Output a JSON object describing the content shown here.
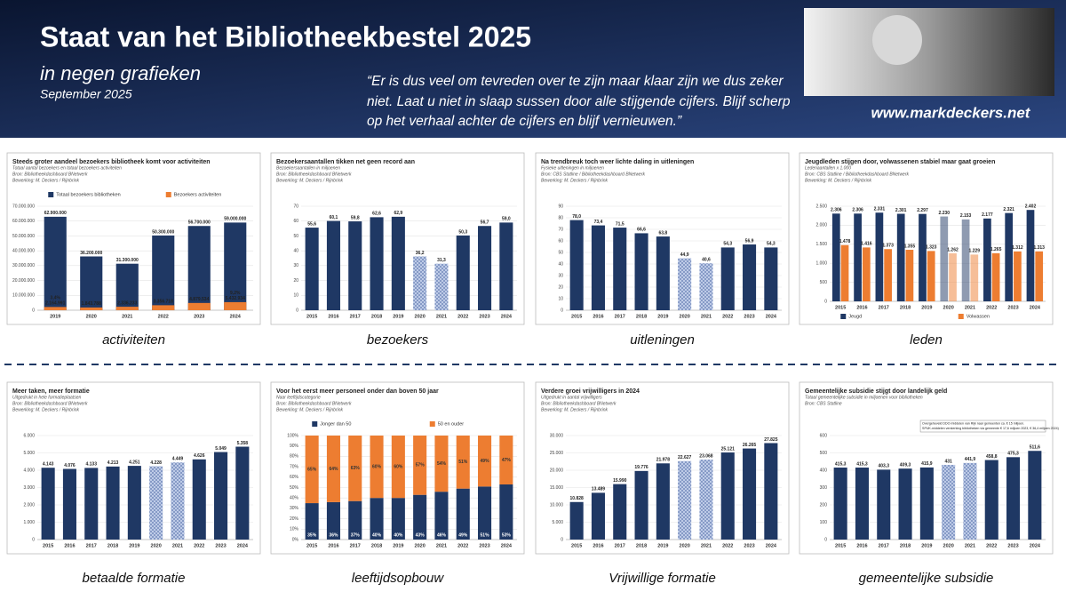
{
  "header": {
    "title": "Staat van het Bibliotheekbestel 2025",
    "subtitle": "in negen grafieken",
    "date": "September 2025",
    "quote_lines": [
      "“Er is dus veel om tevreden over te zijn maar klaar zijn we dus zeker",
      "niet. Laat u niet in slaap sussen door alle stijgende cijfers. Blijf scherp",
      "op het verhaal achter de cijfers en blijf vernieuwen.”"
    ],
    "website": "www.markdeckers.net"
  },
  "chart_data": [
    {
      "type": "overlap-bar",
      "title": "Steeds groter aandeel bezoekers bibliotheek komt voor activiteiten",
      "subtitle": "Totaal aantal bezoekers en totaal bezoekers activiteiten",
      "source": "Bron: Bibliotheekdashboard BNetwerk",
      "processing": "Bewerking: M. Deckers / Rijnbrink",
      "caption": "activiteiten",
      "categories": [
        "2019",
        "2020",
        "2021",
        "2022",
        "2023",
        "2024"
      ],
      "series": [
        {
          "name": "Totaal bezoekers bibliotheken",
          "color": "#1f3864",
          "values": [
            62900000,
            36200000,
            31300000,
            50300000,
            56700000,
            59000000
          ],
          "value_labels": [
            "62.900.000",
            "36.200.000",
            "31.300.000",
            "50.300.000",
            "56.700.000",
            "59.000.000"
          ]
        },
        {
          "name": "Bezoekers activiteiten",
          "color": "#ed7d31",
          "values": [
            2164991,
            1843788,
            2336233,
            3356718,
            4879534,
            5432934
          ],
          "value_labels": [
            "2.164.991",
            "1.843.788",
            "2.336.233",
            "3.356.718",
            "4.879.534",
            "5.432.934"
          ],
          "share_labels": [
            "3,4%",
            null,
            null,
            null,
            null,
            "9,2%"
          ]
        }
      ],
      "legend": "top",
      "ylim": [
        0,
        70000000
      ],
      "yticks": [
        0,
        {
          "value": 10000000,
          "label": "10.000.000"
        },
        {
          "value": 20000000,
          "label": "20.000.000"
        },
        {
          "value": 30000000,
          "label": "30.000.000"
        },
        {
          "value": 40000000,
          "label": "40.000.000"
        },
        {
          "value": 50000000,
          "label": "50.000.000"
        },
        {
          "value": 60000000,
          "label": "60.000.000"
        },
        {
          "value": 70000000,
          "label": "70.000.000"
        }
      ]
    },
    {
      "type": "bar",
      "title": "Bezoekersaantallen tikken net geen record aan",
      "subtitle": "Bezoekersaantallen in miljoenen",
      "source": "Bron: Bibliotheekdashboard BNetwerk",
      "processing": "Bewerking: M. Deckers / Rijnbrink",
      "caption": "bezoekers",
      "categories": [
        "2015",
        "2016",
        "2017",
        "2018",
        "2019",
        "2020",
        "2021",
        "2022",
        "2023",
        "2024"
      ],
      "values": [
        55.6,
        60.1,
        59.8,
        62.6,
        62.9,
        36.2,
        31.3,
        50.3,
        56.7,
        59.0
      ],
      "value_labels": [
        "55,6",
        "60,1",
        "59,8",
        "62,6",
        "62,9",
        "36,2",
        "31,3",
        "50,3",
        "56,7",
        "59,0"
      ],
      "color": "#1f3864",
      "hatched": [
        false,
        false,
        false,
        false,
        false,
        true,
        true,
        false,
        false,
        false
      ],
      "ylim": [
        0,
        70
      ],
      "yticks": [
        0,
        10,
        20,
        30,
        40,
        50,
        60,
        70
      ]
    },
    {
      "type": "bar",
      "title": "Na trendbreuk toch weer lichte daling in uitleningen",
      "subtitle": "Fysieke uitleningen in miljoenen",
      "source": "Bron: CBS Statline / Bibliotheekdashboard BNetwerk",
      "processing": "Bewerking: M. Deckers / Rijnbrink",
      "caption": "uitleningen",
      "categories": [
        "2015",
        "2016",
        "2017",
        "2018",
        "2019",
        "2020",
        "2021",
        "2022",
        "2023",
        "2024"
      ],
      "values": [
        78.0,
        73.4,
        71.5,
        66.6,
        63.8,
        44.9,
        40.6,
        54.3,
        56.9,
        54.3
      ],
      "value_labels": [
        "78,0",
        "73,4",
        "71,5",
        "66,6",
        "63,8",
        "44,9",
        "40,6",
        "54,3",
        "56,9",
        "54,3"
      ],
      "color": "#1f3864",
      "hatched": [
        false,
        false,
        false,
        false,
        false,
        true,
        true,
        false,
        false,
        false
      ],
      "ylim": [
        0,
        90
      ],
      "yticks": [
        0,
        10,
        20,
        30,
        40,
        50,
        60,
        70,
        80,
        90
      ]
    },
    {
      "type": "grouped-bar",
      "title": "Jeugdleden stijgen door, volwassenen stabiel maar gaat groeien",
      "subtitle": "Ledenaantallen x 1.000",
      "source": "Bron: CBS Statline / Bibliotheekdashboard BNetwerk",
      "processing": "Bewerking: M. Deckers / Rijnbrink",
      "caption": "leden",
      "categories": [
        "2015",
        "2016",
        "2017",
        "2018",
        "2019",
        "2020",
        "2021",
        "2022",
        "2023",
        "2024"
      ],
      "series": [
        {
          "name": "Jeugd",
          "color": "#1f3864",
          "values": [
            2306,
            2306,
            2331,
            2301,
            2297,
            2230,
            2153,
            2177,
            2321,
            2402
          ],
          "value_labels": [
            "2.306",
            "2.306",
            "2.331",
            "2.301",
            "2.297",
            "2.230",
            "2.153",
            "2.177",
            "2.321",
            "2.402"
          ]
        },
        {
          "name": "Volwassen",
          "color": "#ed7d31",
          "values": [
            1478,
            1416,
            1373,
            1355,
            1323,
            1262,
            1229,
            1265,
            1312,
            1313
          ],
          "value_labels": [
            "1.478",
            "1.416",
            "1.373",
            "1.355",
            "1.323",
            "1.262",
            "1.229",
            "1.265",
            "1.312",
            "1.313"
          ]
        }
      ],
      "hatched": [
        false,
        false,
        false,
        false,
        false,
        true,
        true,
        false,
        false,
        false
      ],
      "legend": "bottom",
      "ylim": [
        0,
        2500
      ],
      "yticks": [
        0,
        500,
        {
          "value": 1000,
          "label": "1.000"
        },
        {
          "value": 1500,
          "label": "1.500"
        },
        {
          "value": 2000,
          "label": "2.000"
        },
        {
          "value": 2500,
          "label": "2.500"
        }
      ]
    },
    {
      "type": "bar",
      "title": "Meer taken, meer formatie",
      "subtitle": "Uitgedrukt in hele formatieplaatsen",
      "source": "Bron: Bibliotheekdashboard BNetwerk",
      "processing": "Bewerking: M. Deckers / Rijnbrink",
      "caption": "betaalde formatie",
      "categories": [
        "2015",
        "2016",
        "2017",
        "2018",
        "2019",
        "2020",
        "2021",
        "2022",
        "2023",
        "2024"
      ],
      "values": [
        4143,
        4076,
        4133,
        4213,
        4251,
        4228,
        4449,
        4626,
        5049,
        5358
      ],
      "value_labels": [
        "4.143",
        "4.076",
        "4.133",
        "4.213",
        "4.251",
        "4.228",
        "4.449",
        "4.626",
        "5.049",
        "5.358"
      ],
      "color": "#1f3864",
      "hatched": [
        false,
        false,
        false,
        false,
        false,
        true,
        true,
        false,
        false,
        false
      ],
      "ylim": [
        0,
        6000
      ],
      "yticks": [
        0,
        {
          "value": 1000,
          "label": "1.000"
        },
        {
          "value": 2000,
          "label": "2.000"
        },
        {
          "value": 3000,
          "label": "3.000"
        },
        {
          "value": 4000,
          "label": "4.000"
        },
        {
          "value": 5000,
          "label": "5.000"
        },
        {
          "value": 6000,
          "label": "6.000"
        }
      ]
    },
    {
      "type": "stacked-bar",
      "title": "Voor het eerst meer personeel onder dan boven 50 jaar",
      "subtitle": "Naar leeftijdscategorie",
      "source": "Bron: Bibliotheekdashboard BNetwerk",
      "processing": "Bewerking: M. Deckers / Rijnbrink",
      "caption": "leeftijdsopbouw",
      "categories": [
        "2015",
        "2016",
        "2017",
        "2018",
        "2019",
        "2020",
        "2021",
        "2022",
        "2023",
        "2024"
      ],
      "series": [
        {
          "name": "Jonger dan 50",
          "color": "#1f3864",
          "values": [
            35,
            36,
            37,
            40,
            40,
            43,
            46,
            49,
            51,
            53
          ],
          "value_labels": [
            "35%",
            "36%",
            "37%",
            "40%",
            "40%",
            "43%",
            "46%",
            "49%",
            "51%",
            "53%"
          ]
        },
        {
          "name": "50 en ouder",
          "color": "#ed7d31",
          "values": [
            65,
            64,
            63,
            60,
            60,
            57,
            54,
            51,
            49,
            47
          ],
          "value_labels": [
            "65%",
            "64%",
            "63%",
            "60%",
            "60%",
            "57%",
            "54%",
            "51%",
            "49%",
            "47%"
          ]
        }
      ],
      "legend": "top",
      "ylim": [
        0,
        100
      ],
      "yticks": [
        {
          "value": 0,
          "label": "0%"
        },
        {
          "value": 10,
          "label": "10%"
        },
        {
          "value": 20,
          "label": "20%"
        },
        {
          "value": 30,
          "label": "30%"
        },
        {
          "value": 40,
          "label": "40%"
        },
        {
          "value": 50,
          "label": "50%"
        },
        {
          "value": 60,
          "label": "60%"
        },
        {
          "value": 70,
          "label": "70%"
        },
        {
          "value": 80,
          "label": "80%"
        },
        {
          "value": 90,
          "label": "90%"
        },
        {
          "value": 100,
          "label": "100%"
        }
      ]
    },
    {
      "type": "bar",
      "title": "Verdere groei vrijwilligers in 2024",
      "subtitle": "Uitgedrukt in aantal vrijwilligers",
      "source": "Bron: Bibliotheekdashboard BNetwerk",
      "processing": "Bewerking: M. Deckers / Rijnbrink",
      "caption": "Vrijwillige formatie",
      "categories": [
        "2015",
        "2016",
        "2017",
        "2018",
        "2019",
        "2020",
        "2021",
        "2022",
        "2023",
        "2024"
      ],
      "values": [
        10828,
        13489,
        15990,
        19776,
        21978,
        22627,
        23068,
        25121,
        26265,
        27825
      ],
      "value_labels": [
        "10.828",
        "13.489",
        "15.990",
        "19.776",
        "21.978",
        "22.627",
        "23.068",
        "25.121",
        "26.265",
        "27.825"
      ],
      "color": "#1f3864",
      "hatched": [
        false,
        false,
        false,
        false,
        false,
        true,
        true,
        false,
        false,
        false
      ],
      "ylim": [
        0,
        30000
      ],
      "yticks": [
        0,
        {
          "value": 5000,
          "label": "5.000"
        },
        {
          "value": 10000,
          "label": "10.000"
        },
        {
          "value": 15000,
          "label": "15.000"
        },
        {
          "value": 20000,
          "label": "20.000"
        },
        {
          "value": 25000,
          "label": "25.000"
        },
        {
          "value": 30000,
          "label": "30.000"
        }
      ]
    },
    {
      "type": "bar",
      "title": "Gemeentelijke subsidie stijgt door landelijk geld",
      "subtitle": "Totaal gemeentelijke subsidie in miljoenen voor bibliotheken",
      "source": "Bron: CBS Statline",
      "caption": "gemeentelijke subsidie",
      "annotation_lines": [
        "Overgeheveld DDO middelen van Rijk naar gemeenten ca. € 15 miljoen.",
        "SPUK-middelen versterking bibliotheken via gemeente € 17,6 miljoen 2023, € 36,4 miljoen 2024)"
      ],
      "categories": [
        "2015",
        "2016",
        "2017",
        "2018",
        "2019",
        "2020",
        "2021",
        "2022",
        "2023",
        "2024"
      ],
      "values": [
        415.3,
        415.3,
        403.3,
        409.3,
        415.9,
        431,
        441.9,
        458.8,
        475.3,
        511.6
      ],
      "value_labels": [
        "415,3",
        "415,3",
        "403,3",
        "409,3",
        "415,9",
        "431",
        "441,9",
        "458,8",
        "475,3",
        "511,6"
      ],
      "color": "#1f3864",
      "hatched": [
        false,
        false,
        false,
        false,
        false,
        true,
        true,
        false,
        false,
        false
      ],
      "ylim": [
        0,
        600
      ],
      "yticks": [
        0,
        100,
        200,
        300,
        400,
        500,
        600
      ]
    }
  ]
}
